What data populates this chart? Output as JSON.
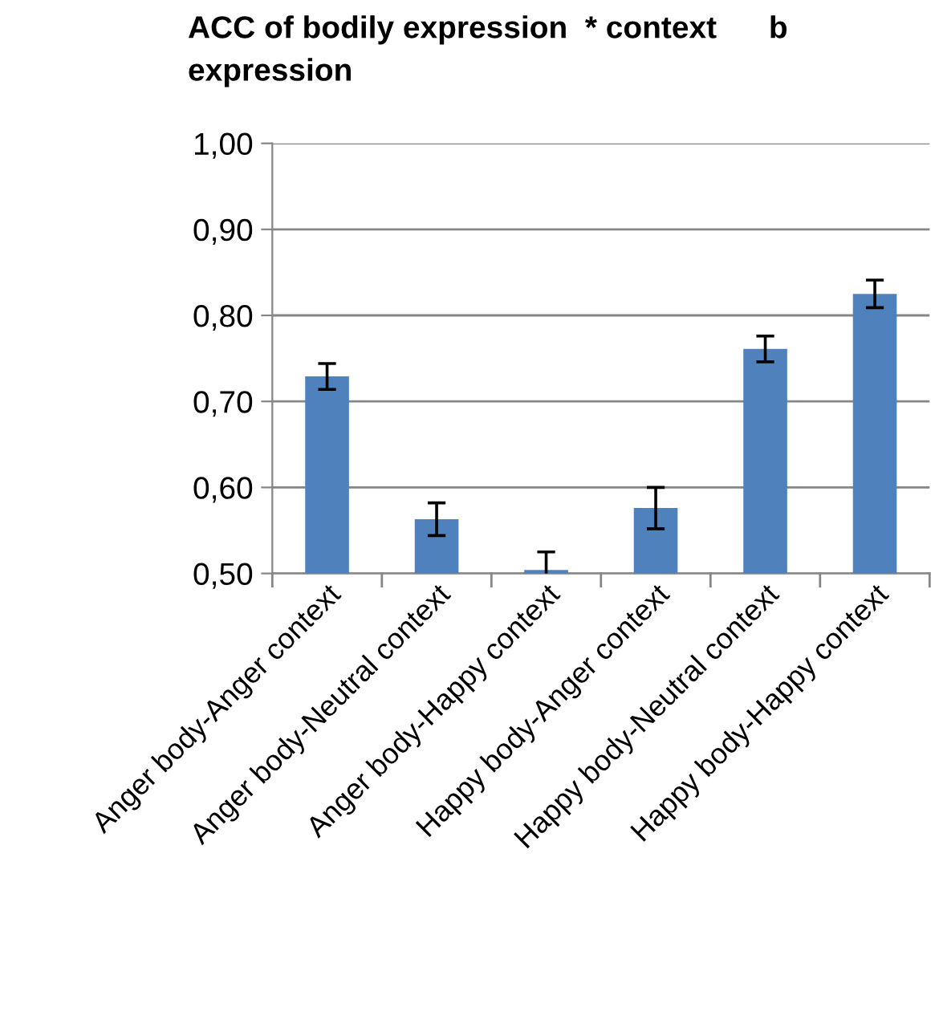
{
  "chart_data": {
    "type": "bar",
    "title": "ACC of bodily expression  * context      b\nexpression",
    "categories": [
      "Anger body-Anger context",
      "Anger body-Neutral context",
      "Anger body-Happy context",
      "Happy body-Anger context",
      "Happy body-Neutral context",
      "Happy body-Happy context"
    ],
    "values": [
      0.729,
      0.563,
      0.504,
      0.576,
      0.761,
      0.825
    ],
    "errors": [
      0.015,
      0.019,
      0.021,
      0.024,
      0.015,
      0.016
    ],
    "color": "#4f81bd",
    "ylim": [
      0.5,
      1.0
    ],
    "yticks": [
      {
        "value": 0.5,
        "label": "0,50"
      },
      {
        "value": 0.6,
        "label": "0,60"
      },
      {
        "value": 0.7,
        "label": "0,70"
      },
      {
        "value": 0.8,
        "label": "0,80"
      },
      {
        "value": 0.9,
        "label": "0,90"
      },
      {
        "value": 1.0,
        "label": "1,00"
      }
    ],
    "grid": "y"
  }
}
